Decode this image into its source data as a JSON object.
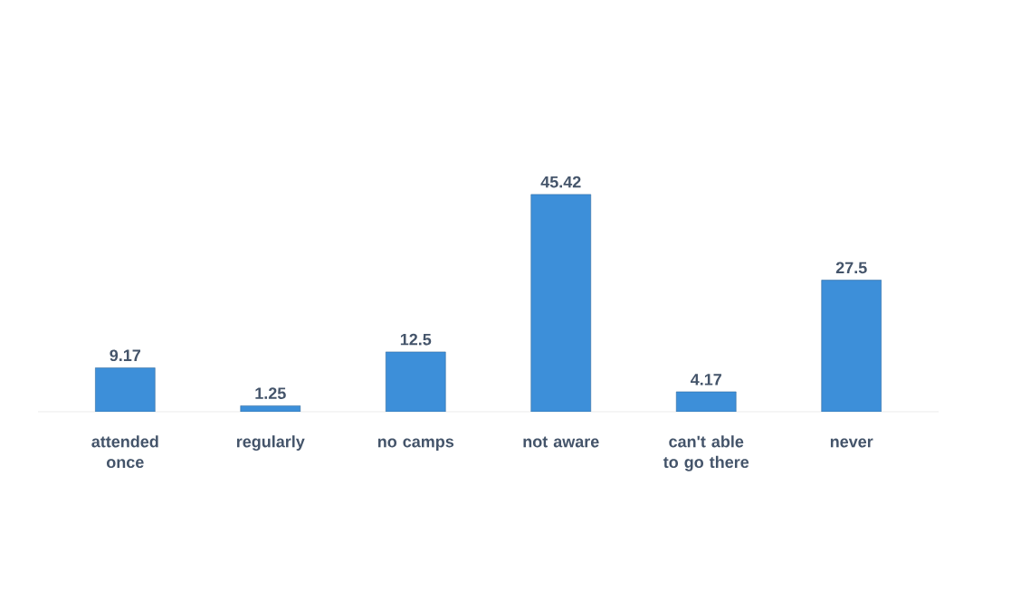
{
  "chart_data": {
    "type": "bar",
    "categories": [
      "attended once",
      "regularly",
      "no camps",
      "not aware",
      "can't able to go there",
      "never"
    ],
    "values": [
      9.17,
      1.25,
      12.5,
      45.42,
      4.17,
      27.5
    ],
    "color": "#3d8fd9",
    "data_labels": true
  }
}
